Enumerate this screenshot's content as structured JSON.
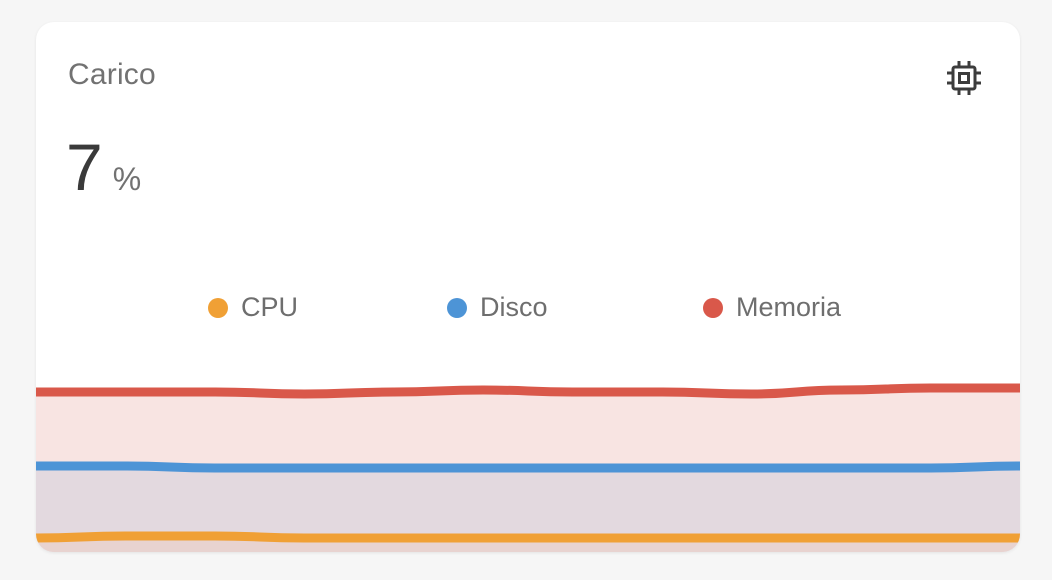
{
  "card": {
    "title": "Carico",
    "icon": "cpu-chip-icon",
    "value": "7",
    "unit": "%"
  },
  "colors": {
    "cpu": "#f0a035",
    "disco": "#4d94d6",
    "memoria": "#d9584a",
    "memoria_fill": "#f8e4e2",
    "disco_fill": "#e3d9df",
    "cpu_fill": "#e8d3d0"
  },
  "chart_data": {
    "type": "area",
    "x": [
      0,
      1,
      2,
      3,
      4,
      5,
      6,
      7,
      8,
      9,
      10,
      11
    ],
    "ylim": [
      0,
      100
    ],
    "series": [
      {
        "name": "CPU",
        "key": "cpu",
        "values": [
          7,
          8,
          8,
          7,
          7,
          7,
          7,
          7,
          7,
          7,
          7,
          7
        ]
      },
      {
        "name": "Disco",
        "key": "disco",
        "values": [
          43,
          43,
          42,
          42,
          42,
          42,
          42,
          42,
          42,
          42,
          42,
          43
        ]
      },
      {
        "name": "Memoria",
        "key": "memoria",
        "values": [
          80,
          80,
          80,
          79,
          80,
          81,
          80,
          80,
          79,
          81,
          82,
          82
        ]
      }
    ],
    "legend": "top-center"
  }
}
